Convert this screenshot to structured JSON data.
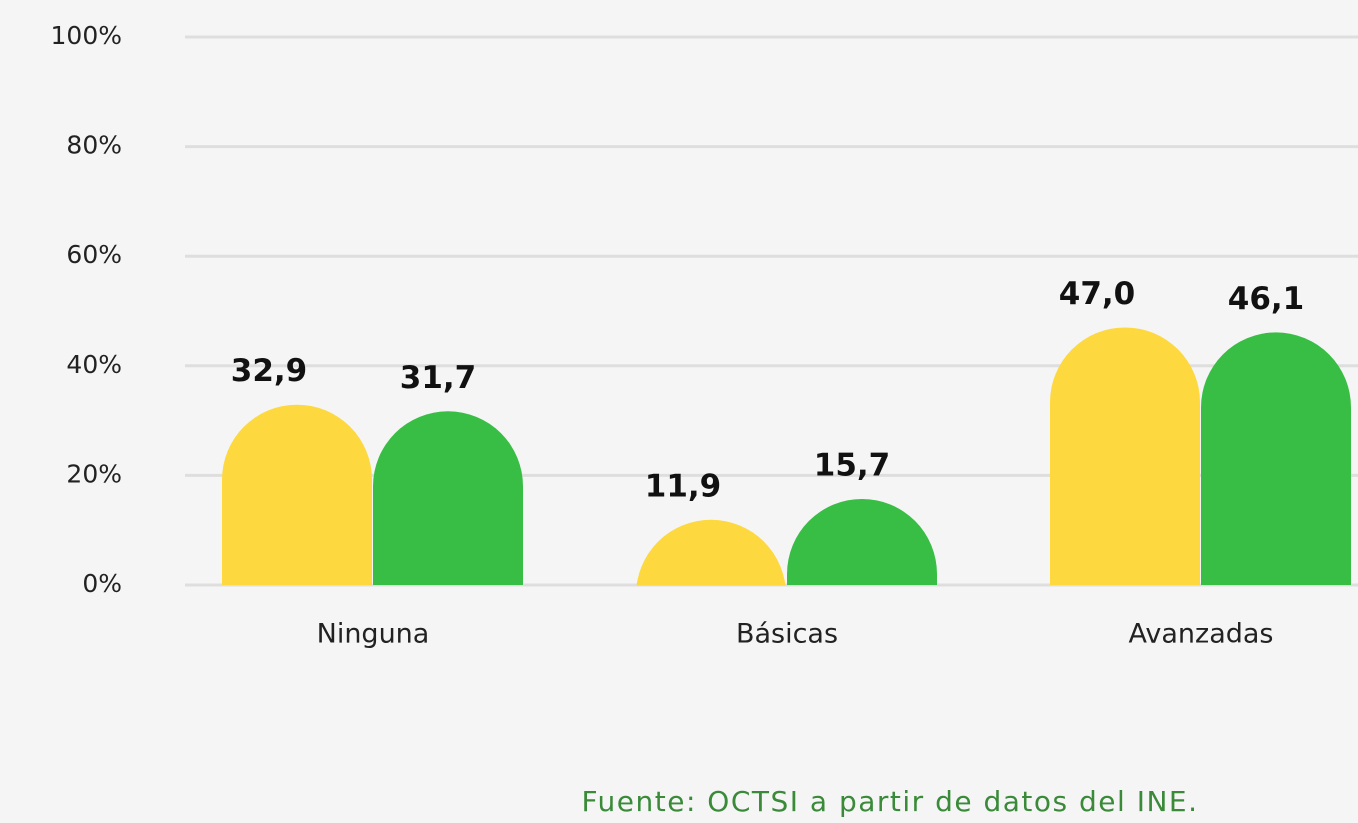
{
  "chart_data": {
    "type": "bar",
    "categories": [
      "Ninguna",
      "Básicas",
      "Avanzadas"
    ],
    "series": [
      {
        "color": "#fdd83f",
        "values": [
          32.9,
          11.9,
          47.0
        ],
        "value_labels": [
          "32,9",
          "11,9",
          "47,0"
        ]
      },
      {
        "color": "#39be45",
        "values": [
          31.7,
          15.7,
          46.1
        ],
        "value_labels": [
          "31,7",
          "15,7",
          "46,1"
        ]
      }
    ],
    "ylim": [
      0,
      100
    ],
    "yticks": [
      {
        "value": 0,
        "label": "0%"
      },
      {
        "value": 20,
        "label": "20%"
      },
      {
        "value": 40,
        "label": "40%"
      },
      {
        "value": 60,
        "label": "60%"
      },
      {
        "value": 80,
        "label": "80%"
      },
      {
        "value": 100,
        "label": "100%"
      }
    ],
    "grid": true,
    "source": "Fuente: OCTSI a partir de datos del INE."
  }
}
